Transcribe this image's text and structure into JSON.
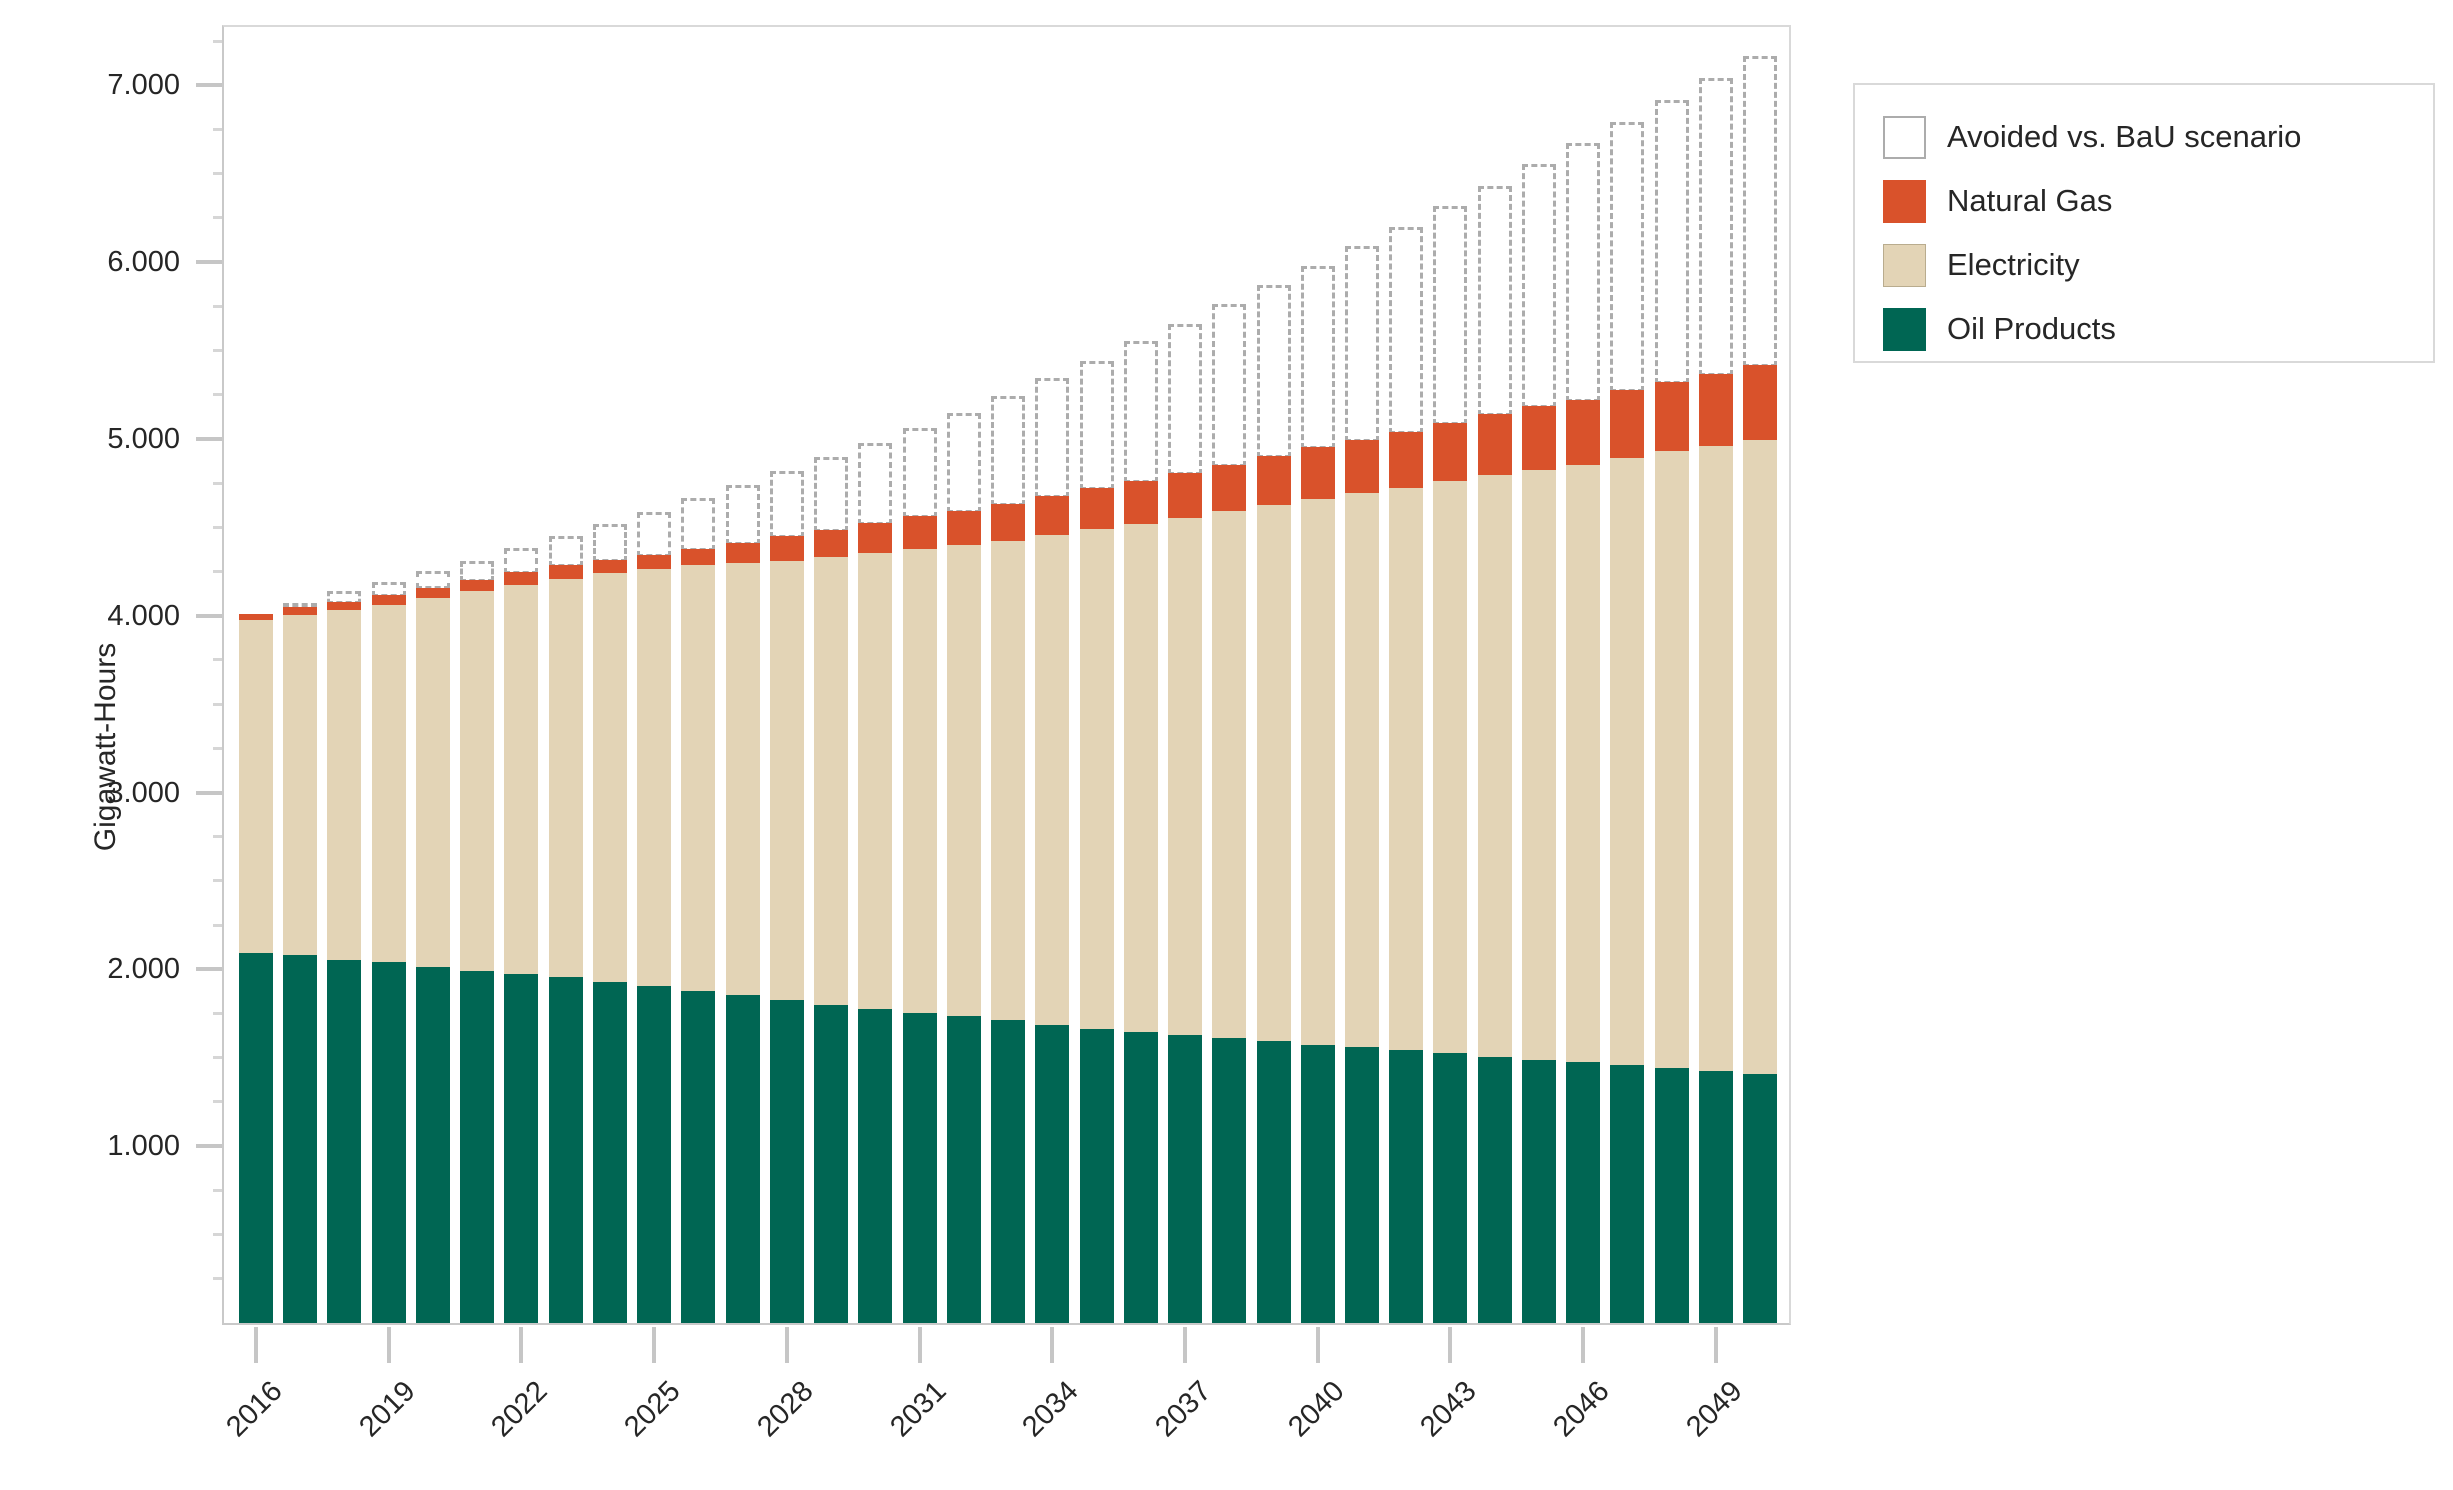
{
  "colors": {
    "oil": "#006653",
    "electricity": "#e3d4b6",
    "natural_gas": "#d9522b",
    "avoided_fill": "#ffffff",
    "avoided_outline": "#acacac",
    "electricity_border": "#b9ac8e",
    "plot_border": "#d9d9d9",
    "tick_major": "#c6c6c6",
    "tick_minor": "#d6d6d6",
    "text": "#262626"
  },
  "y_axis": {
    "title": "Gigawatt-Hours",
    "majors": [
      {
        "value": 1000,
        "label": "1.000"
      },
      {
        "value": 2000,
        "label": "2.000"
      },
      {
        "value": 3000,
        "label": "3.000"
      },
      {
        "value": 4000,
        "label": "4.000"
      },
      {
        "value": 5000,
        "label": "5.000"
      },
      {
        "value": 6000,
        "label": "6.000"
      },
      {
        "value": 7000,
        "label": "7.000"
      }
    ],
    "minor_step": 250,
    "max": 7330
  },
  "x_axis": {
    "labels": [
      "2016",
      "2019",
      "2022",
      "2025",
      "2028",
      "2031",
      "2034",
      "2037",
      "2040",
      "2043",
      "2046",
      "2049"
    ],
    "label_step": 3
  },
  "legend": {
    "items": [
      {
        "label": "Avoided vs. BaU scenario",
        "swatch": "avoided"
      },
      {
        "label": "Natural Gas",
        "swatch": "natural_gas"
      },
      {
        "label": "Electricity",
        "swatch": "electricity"
      },
      {
        "label": "Oil Products",
        "swatch": "oil"
      }
    ]
  },
  "chart_data": {
    "type": "bar",
    "stacked": true,
    "title": "",
    "xlabel": "",
    "ylabel": "Gigawatt-Hours",
    "ylim": [
      0,
      7330
    ],
    "grid": false,
    "legend_position": "right",
    "x": [
      2016,
      2017,
      2018,
      2019,
      2020,
      2021,
      2022,
      2023,
      2024,
      2025,
      2026,
      2027,
      2028,
      2029,
      2030,
      2031,
      2032,
      2033,
      2034,
      2035,
      2036,
      2037,
      2038,
      2039,
      2040,
      2041,
      2042,
      2043,
      2044,
      2045,
      2046,
      2047,
      2048,
      2049,
      2050
    ],
    "series": [
      {
        "name": "Oil Products",
        "color_key": "oil",
        "style": "solid",
        "values": [
          2090,
          2080,
          2055,
          2040,
          2015,
          1990,
          1975,
          1955,
          1930,
          1905,
          1880,
          1855,
          1825,
          1800,
          1775,
          1755,
          1735,
          1715,
          1685,
          1665,
          1645,
          1630,
          1610,
          1595,
          1570,
          1560,
          1545,
          1525,
          1505,
          1490,
          1475,
          1460,
          1440,
          1425,
          1410
        ]
      },
      {
        "name": "Electricity",
        "color_key": "electricity",
        "style": "solid",
        "values": [
          1885,
          1925,
          1975,
          2020,
          2085,
          2150,
          2200,
          2255,
          2310,
          2360,
          2405,
          2445,
          2485,
          2530,
          2580,
          2620,
          2665,
          2710,
          2770,
          2825,
          2875,
          2925,
          2980,
          3030,
          3090,
          3135,
          3180,
          3235,
          3290,
          3335,
          3380,
          3435,
          3490,
          3535,
          3585
        ]
      },
      {
        "name": "Natural Gas",
        "color_key": "natural_gas",
        "style": "solid",
        "values": [
          35,
          45,
          50,
          60,
          60,
          65,
          75,
          75,
          75,
          80,
          95,
          110,
          140,
          155,
          170,
          190,
          195,
          205,
          220,
          235,
          245,
          250,
          265,
          280,
          295,
          300,
          315,
          330,
          345,
          360,
          365,
          380,
          390,
          410,
          425
        ]
      },
      {
        "name": "Avoided vs. BaU scenario",
        "color_key": "avoided",
        "style": "dashed-outline",
        "values": [
          0,
          25,
          70,
          80,
          105,
          115,
          145,
          175,
          215,
          255,
          295,
          340,
          380,
          425,
          465,
          510,
          565,
          625,
          680,
          730,
          800,
          855,
          920,
          975,
          1035,
          1110,
          1170,
          1240,
          1305,
          1380,
          1465,
          1530,
          1610,
          1685,
          1755
        ]
      }
    ]
  }
}
